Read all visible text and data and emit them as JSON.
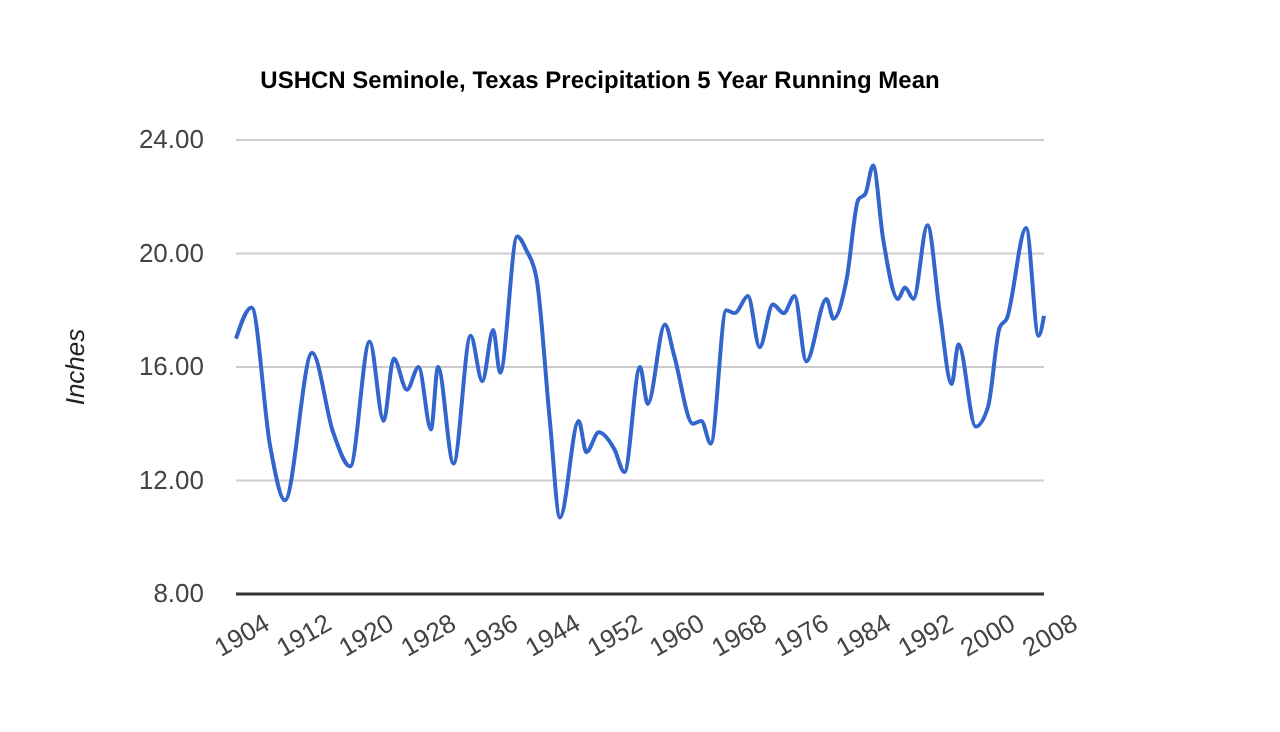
{
  "chart_data": {
    "type": "line",
    "title": "USHCN Seminole, Texas Precipitation 5 Year Running Mean",
    "ylabel": "Inches",
    "xlim": [
      1904,
      2008
    ],
    "xticks": [
      1904,
      1912,
      1920,
      1928,
      1936,
      1944,
      1952,
      1960,
      1968,
      1976,
      1984,
      1992,
      2000,
      2008
    ],
    "ylim": [
      8,
      24
    ],
    "yticks": [
      {
        "value": 8,
        "label": "8.00"
      },
      {
        "value": 12,
        "label": "12.00"
      },
      {
        "value": 16,
        "label": "16.00"
      },
      {
        "value": 20,
        "label": "20.00"
      },
      {
        "value": 24,
        "label": "24.00"
      }
    ],
    "grid": "y",
    "marker": "none",
    "line_style": "solid",
    "series": [
      {
        "color": "#3366cc",
        "x": [
          1904,
          1906,
          1908.4,
          1910.3,
          1913.8,
          1916.5,
          1918.7,
          1921.2,
          1923,
          1924.3,
          1926,
          1927.5,
          1929.1,
          1930,
          1932,
          1934.2,
          1935.7,
          1937.1,
          1938,
          1940.2,
          1941.4,
          1942.7,
          1944.4,
          1945.7,
          1948.1,
          1949.1,
          1950.7,
          1952.7,
          1954,
          1956,
          1957,
          1959.2,
          1960.4,
          1962.8,
          1963.9,
          1965.1,
          1967.1,
          1968.2,
          1969.9,
          1971.4,
          1973.1,
          1974.5,
          1975.9,
          1977.4,
          1980,
          1980.9,
          1982.6,
          1984.1,
          1985,
          1986,
          1987.3,
          1989.2,
          1990.1,
          1991.2,
          1993,
          1994.6,
          1996.1,
          1997,
          1999.2,
          2000.8,
          2002.3,
          2003.2,
          2005.7,
          2007.3,
          2008
        ],
        "values": [
          17.0,
          18.1,
          13.2,
          11.3,
          16.5,
          13.7,
          12.5,
          16.9,
          14.1,
          16.3,
          15.2,
          16.0,
          13.8,
          16.0,
          12.6,
          17.1,
          15.5,
          17.3,
          15.8,
          20.6,
          20.1,
          19.1,
          14.1,
          10.7,
          14.1,
          13.0,
          13.7,
          13.1,
          12.3,
          16.0,
          14.7,
          17.5,
          16.4,
          14.0,
          14.1,
          13.3,
          18.0,
          17.9,
          18.5,
          16.7,
          18.2,
          17.9,
          18.5,
          16.2,
          18.4,
          17.7,
          19.1,
          21.9,
          22.1,
          23.1,
          20.5,
          18.4,
          18.8,
          18.4,
          21.0,
          17.9,
          15.4,
          16.8,
          13.9,
          14.6,
          17.4,
          17.7,
          20.9,
          17.1,
          17.8
        ]
      }
    ]
  }
}
